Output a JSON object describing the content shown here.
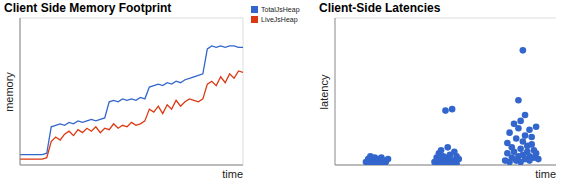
{
  "chart_data": [
    {
      "type": "line",
      "title": "Client Side Memory Footprint",
      "xlabel": "time",
      "ylabel": "memory",
      "x": [
        0,
        2,
        4,
        6,
        8,
        10,
        12,
        14,
        16,
        18,
        20,
        22,
        24,
        26,
        28,
        30,
        32,
        34,
        36,
        38,
        40,
        42,
        44,
        46,
        48,
        50,
        52,
        54,
        56,
        58,
        60,
        62,
        64,
        66,
        68,
        70,
        72,
        74,
        76,
        78,
        80,
        82,
        84,
        86,
        88,
        90,
        92,
        94,
        96,
        98,
        100
      ],
      "series": [
        {
          "name": "TotalJsHeap",
          "color": "#3366cc",
          "values": [
            7,
            7,
            7,
            7,
            7,
            7,
            8,
            26,
            27,
            28,
            27,
            29,
            28,
            30,
            29,
            30,
            31,
            30,
            31,
            32,
            43,
            44,
            43,
            45,
            44,
            45,
            44,
            46,
            45,
            53,
            54,
            55,
            54,
            56,
            55,
            57,
            56,
            58,
            59,
            60,
            61,
            62,
            79,
            81,
            80,
            81,
            80,
            81,
            81,
            80,
            80
          ]
        },
        {
          "name": "LiveJsHeap",
          "color": "#dc3912",
          "values": [
            4,
            4,
            4,
            4,
            4,
            4,
            5,
            16,
            19,
            17,
            21,
            23,
            20,
            24,
            22,
            25,
            23,
            26,
            22,
            25,
            24,
            28,
            25,
            27,
            26,
            29,
            27,
            28,
            30,
            38,
            36,
            40,
            35,
            41,
            38,
            44,
            40,
            43,
            45,
            44,
            43,
            45,
            55,
            57,
            54,
            60,
            56,
            62,
            59,
            64,
            63
          ]
        }
      ],
      "xlim": [
        0,
        100
      ],
      "xticks": [
        0,
        20,
        40,
        60,
        80,
        100
      ],
      "ylim": [
        0,
        100
      ],
      "yticks": [
        0,
        25,
        50,
        75,
        100
      ],
      "grid": true,
      "legend": "right",
      "tick_labels": false
    },
    {
      "type": "scatter",
      "title": "Client-Side Latencies",
      "xlabel": "time",
      "ylabel": "latency",
      "color": "#3366cc",
      "x": [
        14,
        15,
        15,
        16,
        16,
        17,
        17,
        18,
        18,
        18,
        19,
        19,
        20,
        20,
        21,
        21,
        22,
        22,
        23,
        24,
        45,
        46,
        46,
        47,
        47,
        48,
        48,
        48,
        49,
        49,
        50,
        50,
        50,
        51,
        51,
        51,
        52,
        52,
        53,
        53,
        54,
        54,
        55,
        55,
        56,
        77,
        78,
        78,
        79,
        79,
        80,
        80,
        81,
        81,
        82,
        82,
        83,
        83,
        83,
        84,
        84,
        84,
        85,
        85,
        85,
        86,
        86,
        86,
        87,
        87,
        88,
        88,
        88,
        89,
        89,
        90,
        90,
        91,
        91,
        92
      ],
      "values": [
        2,
        4,
        1,
        3,
        6,
        2,
        4,
        1,
        3,
        5,
        2,
        4,
        1,
        3,
        2,
        5,
        1,
        3,
        2,
        4,
        2,
        5,
        1,
        3,
        8,
        2,
        4,
        10,
        1,
        6,
        3,
        2,
        37,
        5,
        1,
        12,
        4,
        7,
        2,
        38,
        3,
        9,
        1,
        6,
        4,
        3,
        8,
        15,
        2,
        22,
        5,
        12,
        28,
        9,
        3,
        18,
        6,
        25,
        44,
        2,
        11,
        30,
        7,
        16,
        78,
        4,
        20,
        34,
        9,
        13,
        3,
        24,
        6,
        14,
        19,
        5,
        10,
        8,
        26,
        4
      ],
      "xlim": [
        0,
        100
      ],
      "xticks": [
        0,
        100
      ],
      "ylim": [
        0,
        100
      ],
      "yticks": [
        0,
        25,
        50,
        75,
        100
      ],
      "grid": "y",
      "tick_labels": false
    }
  ]
}
